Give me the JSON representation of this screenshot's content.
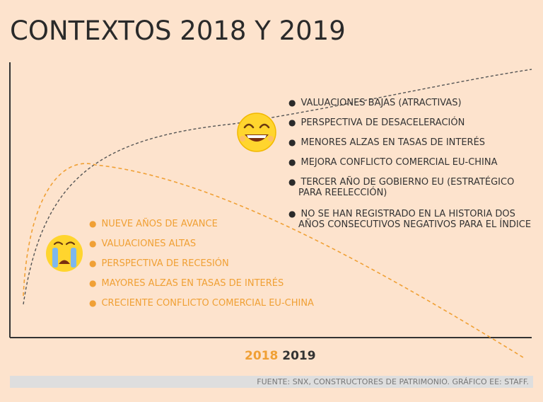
{
  "title": "CONTEXTOS 2018 Y 2019",
  "legend": {
    "label_2018": "2018",
    "label_2019": "2019",
    "color_2018": "#f0a035",
    "color_2019": "#333333"
  },
  "list_2019": [
    [
      "VALUACIONES BAJAS (ATRACTIVAS)"
    ],
    [
      "PERSPECTIVA DE DESACELERACIÓN"
    ],
    [
      "MENORES ALZAS EN TASAS DE INTERÉS"
    ],
    [
      "MEJORA CONFLICTO COMERCIAL EU-CHINA"
    ],
    [
      "TERCER AÑO DE GOBIERNO EU (ESTRATÉGICO",
      "PARA REELECCIÓN)"
    ],
    [
      "NO SE HAN REGISTRADO EN LA HISTORIA DOS",
      "AÑOS CONSECUTIVOS NEGATIVOS PARA EL ÍNDICE"
    ]
  ],
  "list_2018": [
    "NUEVE AÑOS DE AVANCE",
    "VALUACIONES ALTAS",
    "PERSPECTIVA DE RECESIÓN",
    "MAYORES ALZAS EN TASAS DE INTERÉS",
    "CRECIENTE CONFLICTO COMERCIAL EU-CHINA"
  ],
  "source": "FUENTE: SNX, CONSTRUCTORES DE PATRIMONIO. GRÁFICO EE: STAFF.",
  "icons": {
    "happy": "happy-face-icon",
    "sad": "crying-face-icon"
  },
  "chart_data": {
    "type": "line",
    "title": "CONTEXTOS 2018 Y 2019",
    "xlabel": "",
    "ylabel": "",
    "grid": false,
    "series": [
      {
        "name": "2018",
        "color": "#f0a035"
      },
      {
        "name": "2019",
        "color": "#333333"
      }
    ]
  }
}
